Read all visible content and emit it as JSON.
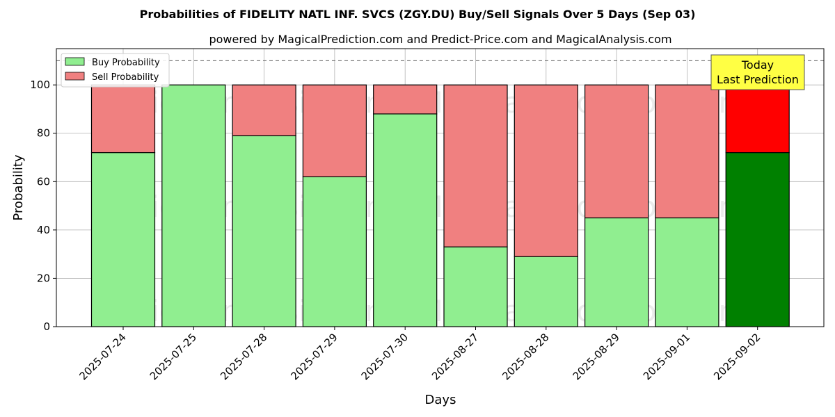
{
  "chart_data": {
    "type": "bar",
    "stacked": true,
    "title": "Probabilities of FIDELITY NATL INF. SVCS (ZGY.DU) Buy/Sell Signals Over 5 Days (Sep 03)",
    "subtitle": "powered by MagicalPrediction.com and Predict-Price.com and MagicalAnalysis.com",
    "xlabel": "Days",
    "ylabel": "Probability",
    "ylim": [
      0,
      115
    ],
    "yticks": [
      0,
      20,
      40,
      60,
      80,
      100
    ],
    "grid": true,
    "legend_position": "top-left",
    "reference_line": 110,
    "categories": [
      "2025-07-24",
      "2025-07-25",
      "2025-07-28",
      "2025-07-29",
      "2025-07-30",
      "2025-08-27",
      "2025-08-28",
      "2025-08-29",
      "2025-09-01",
      "2025-09-02"
    ],
    "series": [
      {
        "name": "Buy Probability",
        "color": "#90ee90",
        "values": [
          72,
          100,
          79,
          62,
          88,
          33,
          29,
          45,
          45,
          72
        ]
      },
      {
        "name": "Sell Probability",
        "color": "#f08080",
        "values": [
          28,
          0,
          21,
          38,
          12,
          67,
          71,
          55,
          55,
          28
        ]
      }
    ],
    "highlight": {
      "index": 9,
      "buy_color": "#008000",
      "sell_color": "#ff0000",
      "label_line1": "Today",
      "label_line2": "Last Prediction",
      "label_bg": "#ffff44"
    },
    "watermarks": [
      "MagicalAnalysis.com",
      "MagicalPrediction.com"
    ]
  }
}
